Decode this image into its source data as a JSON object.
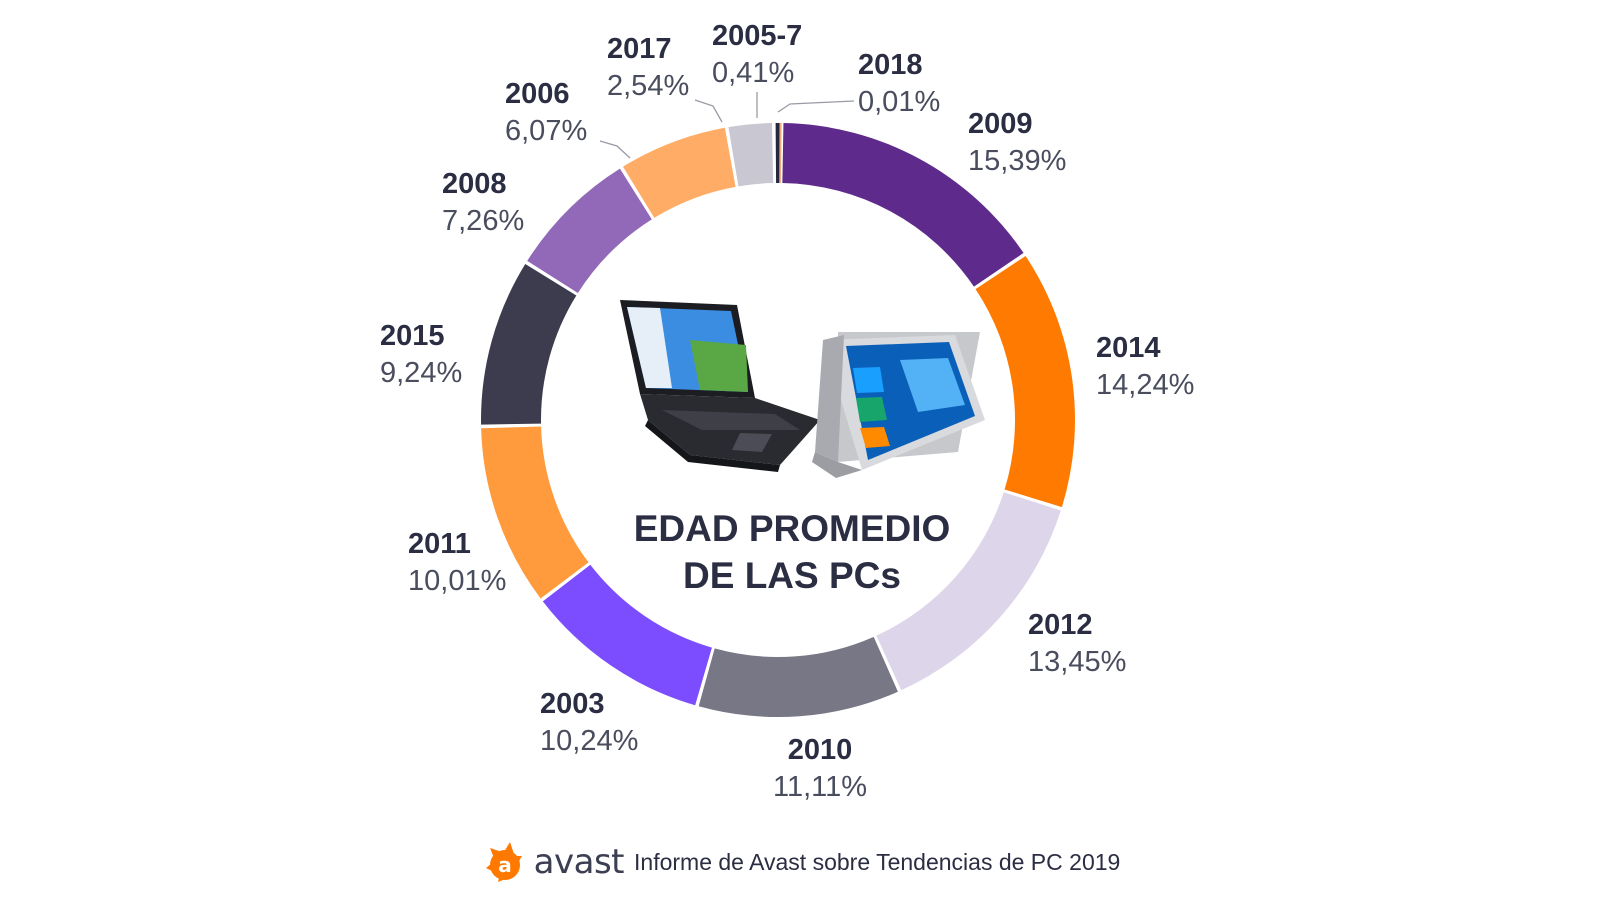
{
  "chart_data": {
    "type": "pie",
    "title": "EDAD PROMEDIO DE LAS PCs",
    "title_lines": [
      "EDAD PROMEDIO",
      "DE LAS PCs"
    ],
    "slices": [
      {
        "label": "2018",
        "value": 0.01,
        "value_text": "0,01%",
        "color": "#f4a97a"
      },
      {
        "label": "2009",
        "value": 15.39,
        "value_text": "15,39%",
        "color": "#5e2b8c"
      },
      {
        "label": "2014",
        "value": 14.24,
        "value_text": "14,24%",
        "color": "#ff7a00"
      },
      {
        "label": "2012",
        "value": 13.45,
        "value_text": "13,45%",
        "color": "#ddd5ea"
      },
      {
        "label": "2010",
        "value": 11.11,
        "value_text": "11,11%",
        "color": "#787785"
      },
      {
        "label": "2003",
        "value": 10.24,
        "value_text": "10,24%",
        "color": "#7b4dff"
      },
      {
        "label": "2011",
        "value": 10.01,
        "value_text": "10,01%",
        "color": "#ff9a3d"
      },
      {
        "label": "2015",
        "value": 9.24,
        "value_text": "9,24%",
        "color": "#3d3c4e"
      },
      {
        "label": "2008",
        "value": 7.26,
        "value_text": "7,26%",
        "color": "#9268b8"
      },
      {
        "label": "2006",
        "value": 6.07,
        "value_text": "6,07%",
        "color": "#ffad66"
      },
      {
        "label": "2017",
        "value": 2.54,
        "value_text": "2,54%",
        "color": "#c9c8d2"
      },
      {
        "label": "2005-7",
        "value": 0.41,
        "value_text": "0,41%",
        "color": "#23283f"
      }
    ]
  },
  "footer": {
    "brand": "avast",
    "brand_icon": "avast-logo-icon",
    "brand_color": "#ff7800",
    "caption": "Informe de Avast sobre Tendencias de PC 2019"
  },
  "illustration": {
    "items": [
      "laptop-icon",
      "convertible-laptop-icon"
    ]
  }
}
